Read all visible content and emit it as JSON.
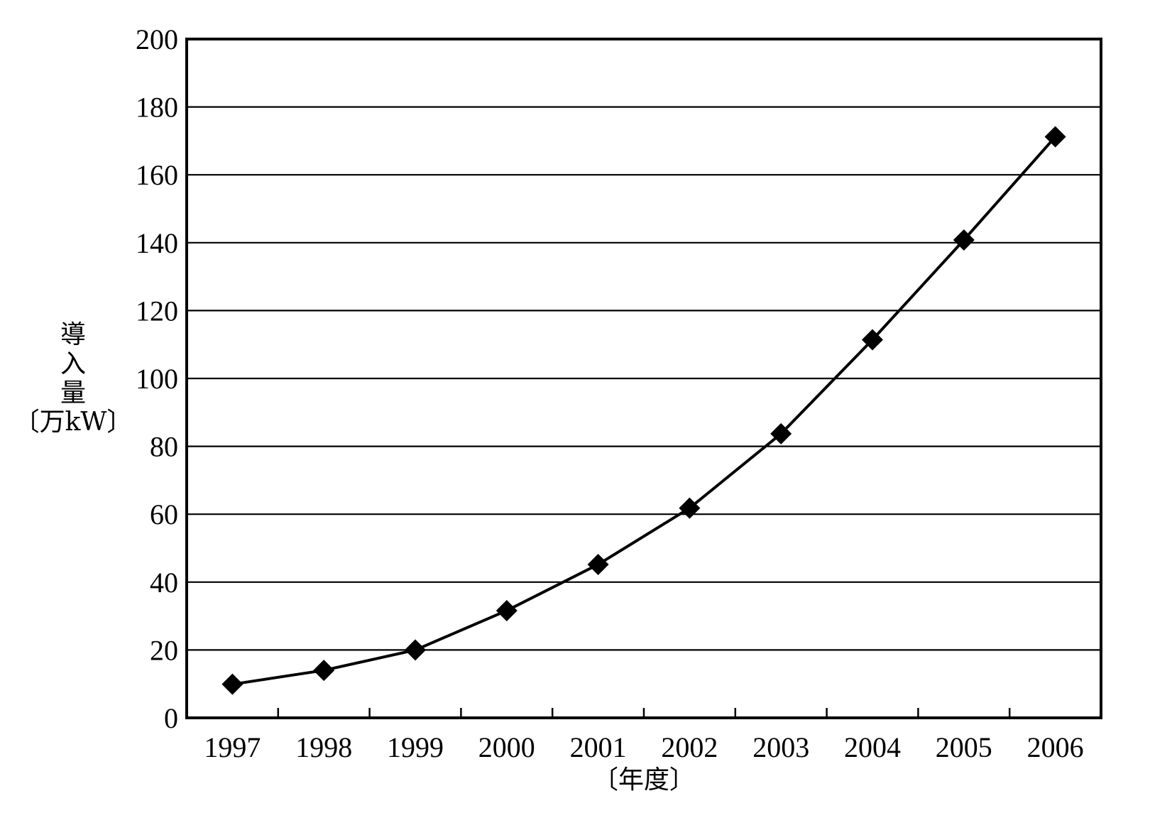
{
  "chart_data": {
    "type": "line",
    "x": [
      "1997",
      "1998",
      "1999",
      "2000",
      "2001",
      "2002",
      "2003",
      "2004",
      "2005",
      "2006"
    ],
    "series": [
      {
        "values": [
          9.9,
          14.0,
          20.0,
          31.6,
          45.2,
          61.8,
          83.7,
          111.4,
          140.8,
          171.2
        ],
        "color": "#000000",
        "marker": "diamond"
      }
    ],
    "title": "",
    "xlabel": "〔年度〕",
    "ylabel_lines": [
      "導",
      "入",
      "量",
      "〔万kW〕"
    ],
    "ylim": [
      0,
      200
    ],
    "yticks": [
      0,
      20,
      40,
      60,
      80,
      100,
      120,
      140,
      160,
      180,
      200
    ],
    "grid": "horizontal",
    "legend": "none"
  }
}
